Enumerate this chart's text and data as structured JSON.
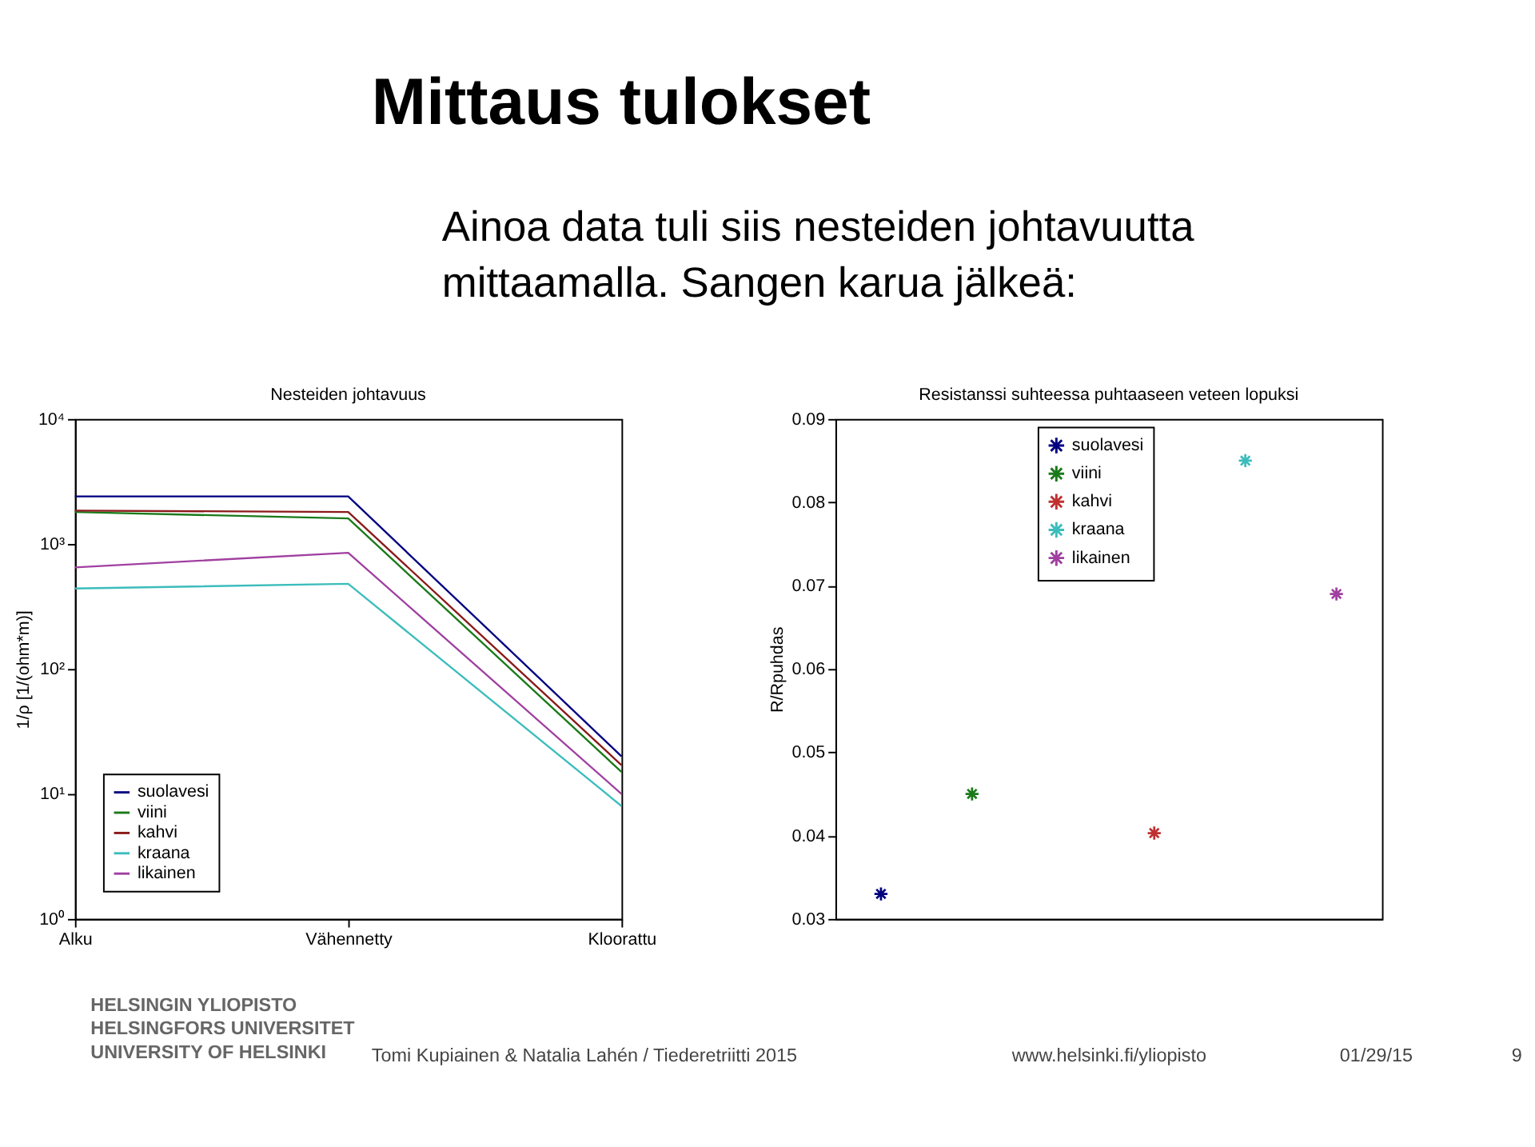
{
  "chart_data": [
    {
      "type": "line",
      "title": "Nesteiden johtavuus",
      "ylabel": "1/ρ [1/(ohm*m)]",
      "categories": [
        "Alku",
        "Vähennetty",
        "Kloorattu"
      ],
      "series": [
        {
          "name": "suolavesi",
          "color": "#000080",
          "values": [
            2400,
            2400,
            20
          ]
        },
        {
          "name": "viini",
          "color": "#1a7a1a",
          "values": [
            1800,
            1600,
            15
          ]
        },
        {
          "name": "kahvi",
          "color": "#8b1a1a",
          "values": [
            1850,
            1800,
            17
          ]
        },
        {
          "name": "kraana",
          "color": "#3cbcbc",
          "values": [
            440,
            480,
            8
          ]
        },
        {
          "name": "likainen",
          "color": "#a040a0",
          "values": [
            650,
            850,
            10
          ]
        }
      ],
      "log": "y",
      "ylim": [
        1,
        10000
      ],
      "yticks": [
        {
          "value": 1,
          "label": "10⁰"
        },
        {
          "value": 10,
          "label": "10¹"
        },
        {
          "value": 100,
          "label": "10²"
        },
        {
          "value": 1000,
          "label": "10³"
        },
        {
          "value": 10000,
          "label": "10⁴"
        }
      ],
      "legend": "bottom left",
      "grid": false,
      "marker": "none",
      "line_style": "solid",
      "annotations": [
        "Mittaus tulokset",
        "Ainoa data tuli siis nesteiden johtavuutta",
        "mittaamalla. Sangen karua jälkeä:"
      ]
    },
    {
      "type": "scatter",
      "title": "Resistanssi suhteessa puhtaaseen veteen lopuksi",
      "ylabel": "R/Rpuhdas",
      "categories": [
        null,
        null,
        null,
        null,
        null,
        null
      ],
      "series": [
        {
          "name": "suolavesi",
          "color": "#000080",
          "values": [
            0.033,
            null,
            null,
            null,
            null,
            null
          ]
        },
        {
          "name": "viini",
          "color": "#1a7a1a",
          "values": [
            null,
            0.045,
            null,
            null,
            null,
            null
          ]
        },
        {
          "name": "kahvi",
          "color": "#c03030",
          "values": [
            null,
            null,
            null,
            0.0403,
            null,
            null
          ]
        },
        {
          "name": "kraana",
          "color": "#3cbcbc",
          "values": [
            null,
            null,
            null,
            null,
            0.085,
            null
          ]
        },
        {
          "name": "likainen",
          "color": "#a040a0",
          "values": [
            null,
            null,
            null,
            null,
            null,
            0.069
          ]
        }
      ],
      "ylim": [
        0.03,
        0.09
      ],
      "yticks": [
        0.03,
        0.04,
        0.05,
        0.06,
        0.07,
        0.08,
        0.09
      ],
      "tick_labels": "y",
      "legend": "top",
      "grid": false,
      "marker": "cross",
      "annotations": [
        "HELSINGIN YLIOPISTO",
        "HELSINGFORS UNIVERSITET",
        "UNIVERSITY OF HELSINKI",
        "Tomi Kupiainen & Natalia Lahén / Tiederetriitti 2015",
        "www.helsinki.fi/yliopisto",
        "01/29/15",
        "9"
      ]
    }
  ]
}
